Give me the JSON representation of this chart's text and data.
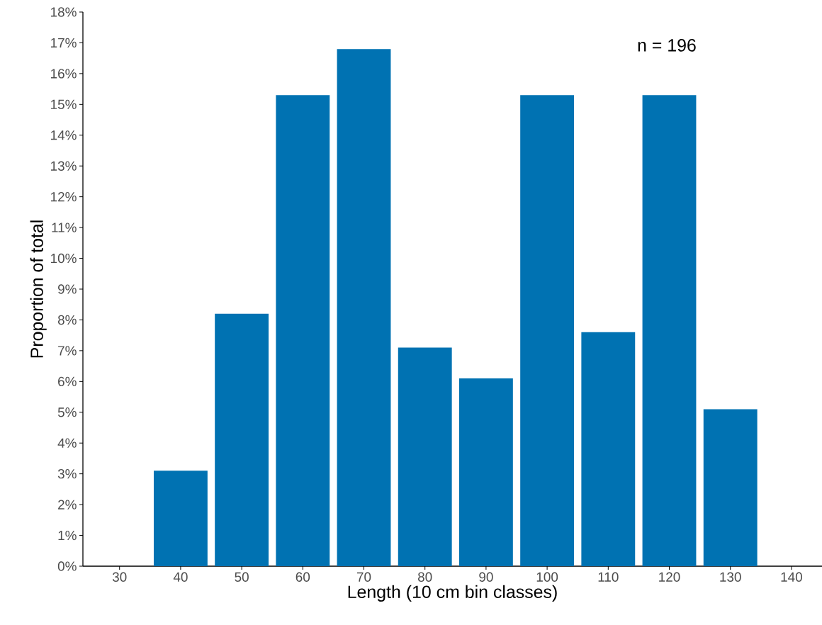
{
  "chart_data": {
    "type": "bar",
    "xlabel": "Length (10 cm bin classes)",
    "ylabel": "Proportion of total",
    "annotations": [
      "n = 196"
    ],
    "x": [
      40,
      50,
      60,
      70,
      80,
      90,
      100,
      110,
      120,
      130
    ],
    "values": [
      3.1,
      8.2,
      15.3,
      16.8,
      7.1,
      6.1,
      15.3,
      7.6,
      15.3,
      5.1
    ],
    "color": "#0072b2",
    "xlim": [
      24,
      145
    ],
    "xticks": [
      30,
      40,
      50,
      60,
      70,
      80,
      90,
      100,
      110,
      120,
      130,
      140
    ],
    "ylim": [
      0,
      18
    ],
    "yticks": [
      {
        "value": 0,
        "label": "0%"
      },
      {
        "value": 1,
        "label": "1%"
      },
      {
        "value": 2,
        "label": "2%"
      },
      {
        "value": 3,
        "label": "3%"
      },
      {
        "value": 4,
        "label": "4%"
      },
      {
        "value": 5,
        "label": "5%"
      },
      {
        "value": 6,
        "label": "6%"
      },
      {
        "value": 7,
        "label": "7%"
      },
      {
        "value": 8,
        "label": "8%"
      },
      {
        "value": 9,
        "label": "9%"
      },
      {
        "value": 10,
        "label": "10%"
      },
      {
        "value": 11,
        "label": "11%"
      },
      {
        "value": 12,
        "label": "12%"
      },
      {
        "value": 13,
        "label": "13%"
      },
      {
        "value": 14,
        "label": "14%"
      },
      {
        "value": 15,
        "label": "15%"
      },
      {
        "value": 16,
        "label": "16%"
      },
      {
        "value": 17,
        "label": "17%"
      },
      {
        "value": 18,
        "label": "18%"
      }
    ],
    "grid": false
  }
}
